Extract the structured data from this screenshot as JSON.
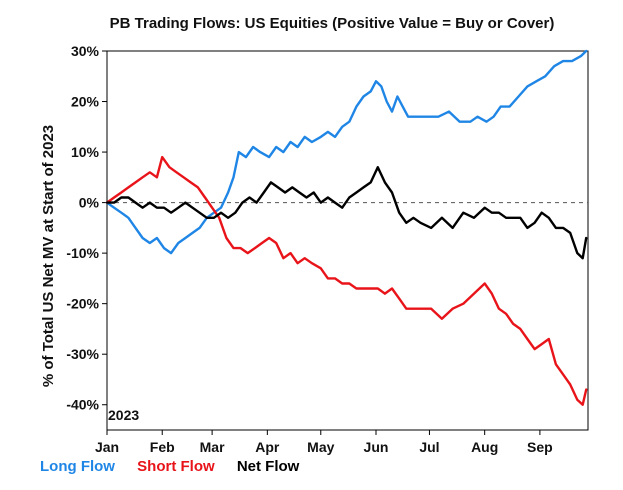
{
  "chart_data": {
    "type": "line",
    "title": "PB Trading Flows: US Equities (Positive Value = Buy or Cover)",
    "ylabel": "% of Total US Net MV at Start of 2023",
    "year_label": "2023",
    "ylim": [
      -45,
      30
    ],
    "yticks": [
      30,
      20,
      10,
      0,
      -10,
      -20,
      -30,
      -40
    ],
    "ytick_labels": [
      "30%",
      "20%",
      "10%",
      "0%",
      "-10%",
      "-20%",
      "-30%",
      "-40%"
    ],
    "xlim": [
      "2023-01-01",
      "2023-09-28"
    ],
    "xticks": [
      "2023-01-01",
      "2023-02-01",
      "2023-03-01",
      "2023-04-01",
      "2023-05-01",
      "2023-06-01",
      "2023-07-01",
      "2023-08-01",
      "2023-09-01"
    ],
    "xtick_labels": [
      "Jan",
      "Feb",
      "Mar",
      "Apr",
      "May",
      "Jun",
      "Jul",
      "Aug",
      "Sep"
    ],
    "zero_line": "dashed",
    "legend_position": "bottom-left",
    "series": [
      {
        "name": "Long Flow",
        "color": "#1f86e6",
        "points": [
          [
            "2023-01-01",
            0
          ],
          [
            "2023-01-05",
            -1
          ],
          [
            "2023-01-09",
            -2
          ],
          [
            "2023-01-13",
            -3
          ],
          [
            "2023-01-17",
            -5
          ],
          [
            "2023-01-21",
            -7
          ],
          [
            "2023-01-25",
            -8
          ],
          [
            "2023-01-29",
            -7
          ],
          [
            "2023-02-02",
            -9
          ],
          [
            "2023-02-06",
            -10
          ],
          [
            "2023-02-10",
            -8
          ],
          [
            "2023-02-14",
            -7
          ],
          [
            "2023-02-18",
            -6
          ],
          [
            "2023-02-22",
            -5
          ],
          [
            "2023-02-26",
            -3
          ],
          [
            "2023-03-02",
            -2
          ],
          [
            "2023-03-06",
            -1
          ],
          [
            "2023-03-10",
            2
          ],
          [
            "2023-03-13",
            5
          ],
          [
            "2023-03-16",
            10
          ],
          [
            "2023-03-20",
            9
          ],
          [
            "2023-03-24",
            11
          ],
          [
            "2023-03-28",
            10
          ],
          [
            "2023-04-02",
            9
          ],
          [
            "2023-04-06",
            11
          ],
          [
            "2023-04-10",
            10
          ],
          [
            "2023-04-14",
            12
          ],
          [
            "2023-04-18",
            11
          ],
          [
            "2023-04-22",
            13
          ],
          [
            "2023-04-26",
            12
          ],
          [
            "2023-05-01",
            13
          ],
          [
            "2023-05-05",
            14
          ],
          [
            "2023-05-09",
            13
          ],
          [
            "2023-05-13",
            15
          ],
          [
            "2023-05-17",
            16
          ],
          [
            "2023-05-21",
            19
          ],
          [
            "2023-05-25",
            21
          ],
          [
            "2023-05-29",
            22
          ],
          [
            "2023-06-01",
            24
          ],
          [
            "2023-06-04",
            23
          ],
          [
            "2023-06-07",
            20
          ],
          [
            "2023-06-10",
            18
          ],
          [
            "2023-06-13",
            21
          ],
          [
            "2023-06-16",
            19
          ],
          [
            "2023-06-19",
            17
          ],
          [
            "2023-06-24",
            17
          ],
          [
            "2023-06-30",
            17
          ],
          [
            "2023-07-06",
            17
          ],
          [
            "2023-07-12",
            18
          ],
          [
            "2023-07-18",
            16
          ],
          [
            "2023-07-24",
            16
          ],
          [
            "2023-07-28",
            17
          ],
          [
            "2023-08-02",
            16
          ],
          [
            "2023-08-06",
            17
          ],
          [
            "2023-08-10",
            19
          ],
          [
            "2023-08-15",
            19
          ],
          [
            "2023-08-20",
            21
          ],
          [
            "2023-08-25",
            23
          ],
          [
            "2023-08-30",
            24
          ],
          [
            "2023-09-04",
            25
          ],
          [
            "2023-09-09",
            27
          ],
          [
            "2023-09-14",
            28
          ],
          [
            "2023-09-19",
            28
          ],
          [
            "2023-09-24",
            29
          ],
          [
            "2023-09-27",
            30
          ]
        ]
      },
      {
        "name": "Short Flow",
        "color": "#e8141a",
        "points": [
          [
            "2023-01-01",
            0
          ],
          [
            "2023-01-05",
            1
          ],
          [
            "2023-01-09",
            2
          ],
          [
            "2023-01-13",
            3
          ],
          [
            "2023-01-17",
            4
          ],
          [
            "2023-01-21",
            5
          ],
          [
            "2023-01-25",
            6
          ],
          [
            "2023-01-29",
            5
          ],
          [
            "2023-02-01",
            9
          ],
          [
            "2023-02-05",
            7
          ],
          [
            "2023-02-09",
            6
          ],
          [
            "2023-02-13",
            5
          ],
          [
            "2023-02-17",
            4
          ],
          [
            "2023-02-21",
            3
          ],
          [
            "2023-02-25",
            1
          ],
          [
            "2023-03-01",
            -1
          ],
          [
            "2023-03-05",
            -3
          ],
          [
            "2023-03-09",
            -7
          ],
          [
            "2023-03-13",
            -9
          ],
          [
            "2023-03-17",
            -9
          ],
          [
            "2023-03-21",
            -10
          ],
          [
            "2023-03-25",
            -9
          ],
          [
            "2023-03-29",
            -8
          ],
          [
            "2023-04-02",
            -7
          ],
          [
            "2023-04-06",
            -8
          ],
          [
            "2023-04-10",
            -11
          ],
          [
            "2023-04-14",
            -10
          ],
          [
            "2023-04-18",
            -12
          ],
          [
            "2023-04-22",
            -11
          ],
          [
            "2023-04-26",
            -12
          ],
          [
            "2023-05-01",
            -13
          ],
          [
            "2023-05-05",
            -15
          ],
          [
            "2023-05-09",
            -15
          ],
          [
            "2023-05-13",
            -16
          ],
          [
            "2023-05-17",
            -16
          ],
          [
            "2023-05-21",
            -17
          ],
          [
            "2023-05-25",
            -17
          ],
          [
            "2023-05-29",
            -17
          ],
          [
            "2023-06-02",
            -17
          ],
          [
            "2023-06-06",
            -18
          ],
          [
            "2023-06-10",
            -17
          ],
          [
            "2023-06-14",
            -19
          ],
          [
            "2023-06-18",
            -21
          ],
          [
            "2023-06-22",
            -21
          ],
          [
            "2023-06-26",
            -21
          ],
          [
            "2023-07-02",
            -21
          ],
          [
            "2023-07-08",
            -23
          ],
          [
            "2023-07-14",
            -21
          ],
          [
            "2023-07-20",
            -20
          ],
          [
            "2023-07-26",
            -18
          ],
          [
            "2023-08-01",
            -16
          ],
          [
            "2023-08-05",
            -18
          ],
          [
            "2023-08-09",
            -21
          ],
          [
            "2023-08-13",
            -22
          ],
          [
            "2023-08-17",
            -24
          ],
          [
            "2023-08-21",
            -25
          ],
          [
            "2023-08-25",
            -27
          ],
          [
            "2023-08-29",
            -29
          ],
          [
            "2023-09-02",
            -28
          ],
          [
            "2023-09-06",
            -27
          ],
          [
            "2023-09-10",
            -32
          ],
          [
            "2023-09-14",
            -34
          ],
          [
            "2023-09-18",
            -36
          ],
          [
            "2023-09-22",
            -39
          ],
          [
            "2023-09-25",
            -40
          ],
          [
            "2023-09-27",
            -37
          ]
        ]
      },
      {
        "name": "Net Flow",
        "color": "#000000",
        "points": [
          [
            "2023-01-01",
            0
          ],
          [
            "2023-01-05",
            0
          ],
          [
            "2023-01-09",
            1
          ],
          [
            "2023-01-13",
            1
          ],
          [
            "2023-01-17",
            0
          ],
          [
            "2023-01-21",
            -1
          ],
          [
            "2023-01-25",
            0
          ],
          [
            "2023-01-29",
            -1
          ],
          [
            "2023-02-02",
            -1
          ],
          [
            "2023-02-06",
            -2
          ],
          [
            "2023-02-10",
            -1
          ],
          [
            "2023-02-14",
            0
          ],
          [
            "2023-02-18",
            -1
          ],
          [
            "2023-02-22",
            -2
          ],
          [
            "2023-02-26",
            -3
          ],
          [
            "2023-03-02",
            -3
          ],
          [
            "2023-03-06",
            -2
          ],
          [
            "2023-03-10",
            -3
          ],
          [
            "2023-03-14",
            -2
          ],
          [
            "2023-03-18",
            0
          ],
          [
            "2023-03-22",
            1
          ],
          [
            "2023-03-26",
            0
          ],
          [
            "2023-03-30",
            2
          ],
          [
            "2023-04-03",
            4
          ],
          [
            "2023-04-07",
            3
          ],
          [
            "2023-04-11",
            2
          ],
          [
            "2023-04-15",
            3
          ],
          [
            "2023-04-19",
            2
          ],
          [
            "2023-04-23",
            1
          ],
          [
            "2023-04-27",
            2
          ],
          [
            "2023-05-01",
            0
          ],
          [
            "2023-05-05",
            1
          ],
          [
            "2023-05-09",
            0
          ],
          [
            "2023-05-13",
            -1
          ],
          [
            "2023-05-17",
            1
          ],
          [
            "2023-05-21",
            2
          ],
          [
            "2023-05-25",
            3
          ],
          [
            "2023-05-29",
            4
          ],
          [
            "2023-06-02",
            7
          ],
          [
            "2023-06-06",
            4
          ],
          [
            "2023-06-10",
            2
          ],
          [
            "2023-06-14",
            -2
          ],
          [
            "2023-06-18",
            -4
          ],
          [
            "2023-06-22",
            -3
          ],
          [
            "2023-06-26",
            -4
          ],
          [
            "2023-07-02",
            -5
          ],
          [
            "2023-07-08",
            -3
          ],
          [
            "2023-07-14",
            -5
          ],
          [
            "2023-07-20",
            -2
          ],
          [
            "2023-07-26",
            -3
          ],
          [
            "2023-08-01",
            -1
          ],
          [
            "2023-08-05",
            -2
          ],
          [
            "2023-08-09",
            -2
          ],
          [
            "2023-08-13",
            -3
          ],
          [
            "2023-08-17",
            -3
          ],
          [
            "2023-08-21",
            -3
          ],
          [
            "2023-08-25",
            -5
          ],
          [
            "2023-08-29",
            -4
          ],
          [
            "2023-09-02",
            -2
          ],
          [
            "2023-09-06",
            -3
          ],
          [
            "2023-09-10",
            -5
          ],
          [
            "2023-09-14",
            -5
          ],
          [
            "2023-09-18",
            -6
          ],
          [
            "2023-09-22",
            -10
          ],
          [
            "2023-09-25",
            -11
          ],
          [
            "2023-09-27",
            -7
          ]
        ]
      }
    ]
  }
}
